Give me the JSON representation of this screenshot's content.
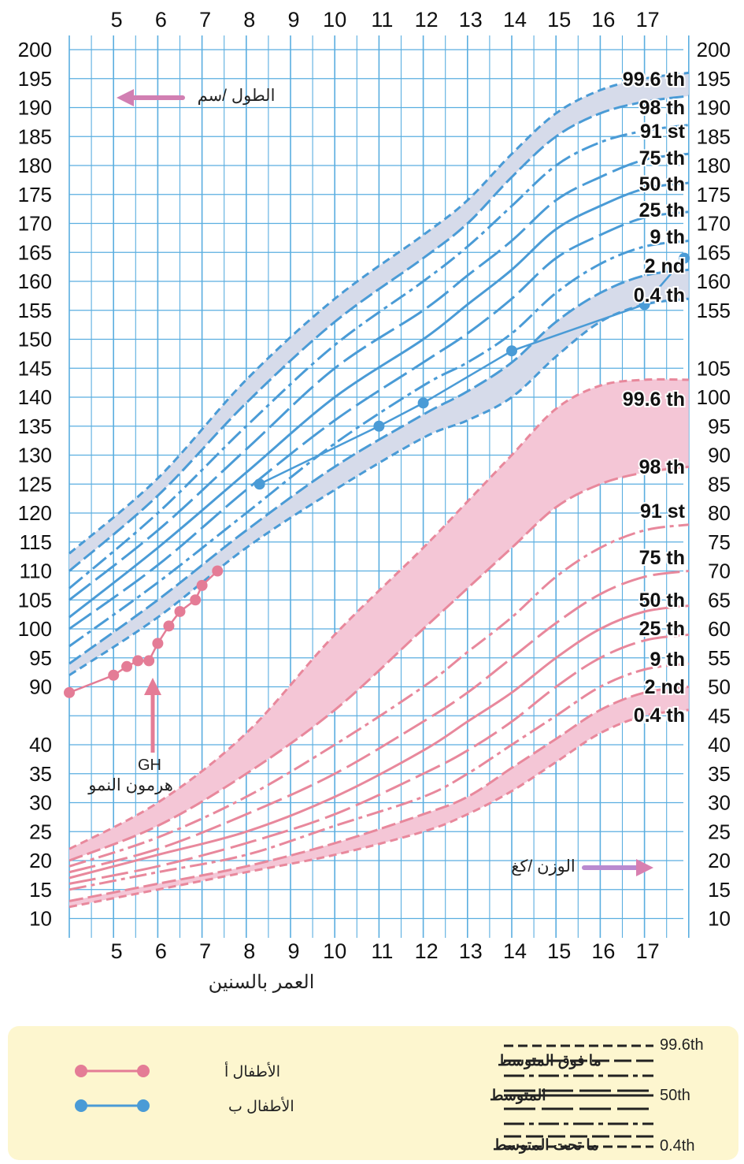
{
  "colors": {
    "grid": "#5aaee0",
    "blue_line": "#4a9bd6",
    "blue_band": "#d6dbea",
    "pink_line": "#e8889c",
    "pink_band": "#f4c6d6",
    "child_a": "#e47c96",
    "child_b": "#4a9bd6",
    "height_arrow": "#d17fb2",
    "weight_arrow": "#b98ad0",
    "legend_bg": "#fdf6cf"
  },
  "chart_data": {
    "type": "line",
    "x_axis": {
      "label": "العمر   بالسنين",
      "top_ticks": [
        "5",
        "6",
        "7",
        "8",
        "9",
        "10",
        "11",
        "12",
        "13",
        "14",
        "15",
        "16",
        "17"
      ],
      "bottom_ticks": [
        "5",
        "6",
        "7",
        "8",
        "9",
        "10",
        "11",
        "12",
        "13",
        "14",
        "15",
        "16",
        "17"
      ]
    },
    "height_axis": {
      "label": "الطول /سم",
      "left_ticks": [
        "200",
        "195",
        "190",
        "185",
        "180",
        "175",
        "170",
        "165",
        "160",
        "155",
        "150",
        "145",
        "140",
        "135",
        "130",
        "125",
        "120",
        "115",
        "110",
        "105",
        "100",
        "95",
        "90"
      ],
      "right_ticks": [
        "200",
        "195",
        "190",
        "185",
        "180",
        "175",
        "170",
        "165",
        "160",
        "155"
      ],
      "range": [
        90,
        200
      ]
    },
    "weight_axis": {
      "label": "الوزن /كغ",
      "left_ticks": [
        "40",
        "35",
        "30",
        "25",
        "20",
        "15",
        "10"
      ],
      "right_ticks": [
        "105",
        "100",
        "95",
        "90",
        "85",
        "80",
        "75",
        "70",
        "65",
        "60",
        "55",
        "50",
        "45",
        "40",
        "35",
        "30",
        "25",
        "20",
        "15",
        "10"
      ],
      "range": [
        10,
        105
      ]
    },
    "height_centiles": [
      "99.6 th",
      "98 th",
      "91 st",
      "75 th",
      "50 th",
      "25 th",
      "9 th",
      "2 nd",
      "0.4 th"
    ],
    "weight_centiles": [
      "99.6 th",
      "98 th",
      "91 st",
      "75 th",
      "50 th",
      "25 th",
      "9 th",
      "2 nd",
      "0.4 th"
    ],
    "height_curves": [
      {
        "name": "99.6 th",
        "x": [
          4,
          6,
          8,
          10,
          12,
          13,
          14,
          15,
          16,
          17,
          18
        ],
        "y": [
          113,
          126,
          143,
          157,
          168,
          174,
          182,
          189,
          193,
          195,
          196
        ]
      },
      {
        "name": "98 th",
        "x": [
          4,
          6,
          8,
          10,
          12,
          13,
          14,
          15,
          16,
          17,
          18
        ],
        "y": [
          110,
          123,
          139,
          153,
          164,
          170,
          178,
          185,
          189,
          191,
          192
        ]
      },
      {
        "name": "91 st",
        "x": [
          4,
          6,
          8,
          10,
          12,
          13,
          14,
          15,
          16,
          17,
          18
        ],
        "y": [
          107,
          120,
          135,
          149,
          160,
          166,
          173,
          180,
          184,
          186,
          187
        ]
      },
      {
        "name": "75 th",
        "x": [
          4,
          6,
          8,
          10,
          12,
          13,
          14,
          15,
          16,
          17,
          18
        ],
        "y": [
          105,
          117,
          131,
          145,
          155,
          161,
          167,
          174,
          178,
          181,
          182
        ]
      },
      {
        "name": "50 th",
        "x": [
          4,
          6,
          8,
          10,
          12,
          13,
          14,
          15,
          16,
          17,
          18
        ],
        "y": [
          102,
          114,
          127,
          140,
          150,
          156,
          162,
          169,
          173,
          176,
          177
        ]
      },
      {
        "name": "25 th",
        "x": [
          4,
          6,
          8,
          10,
          12,
          13,
          14,
          15,
          16,
          17,
          18
        ],
        "y": [
          100,
          111,
          124,
          136,
          146,
          151,
          157,
          164,
          168,
          171,
          172
        ]
      },
      {
        "name": "9 th",
        "x": [
          4,
          6,
          8,
          10,
          12,
          13,
          14,
          15,
          16,
          17,
          18
        ],
        "y": [
          97,
          108,
          120,
          132,
          142,
          146,
          151,
          158,
          163,
          166,
          167
        ]
      },
      {
        "name": "2 nd",
        "x": [
          4,
          6,
          8,
          10,
          12,
          13,
          14,
          15,
          16,
          17,
          18
        ],
        "y": [
          94,
          105,
          117,
          128,
          137,
          141,
          146,
          153,
          158,
          161,
          162
        ]
      },
      {
        "name": "0.4 th",
        "x": [
          4,
          6,
          8,
          10,
          12,
          13,
          14,
          15,
          16,
          17,
          18
        ],
        "y": [
          92,
          102,
          114,
          124,
          133,
          136,
          140,
          147,
          153,
          156,
          157
        ]
      }
    ],
    "weight_curves": [
      {
        "name": "99.6 th",
        "x": [
          4,
          6,
          8,
          10,
          12,
          13,
          14,
          15,
          16,
          17,
          18
        ],
        "y": [
          22,
          30,
          42,
          59,
          74,
          82,
          90,
          98,
          102,
          103,
          103
        ]
      },
      {
        "name": "98 th",
        "x": [
          4,
          6,
          8,
          10,
          12,
          13,
          14,
          15,
          16,
          17,
          18
        ],
        "y": [
          20,
          26,
          35,
          46,
          60,
          67,
          74,
          81,
          85,
          87,
          88
        ]
      },
      {
        "name": "91 st",
        "x": [
          4,
          6,
          8,
          10,
          12,
          13,
          14,
          15,
          16,
          17,
          18
        ],
        "y": [
          19,
          24,
          31,
          40,
          50,
          56,
          62,
          69,
          74,
          77,
          78
        ]
      },
      {
        "name": "75 th",
        "x": [
          4,
          6,
          8,
          10,
          12,
          13,
          14,
          15,
          16,
          17,
          18
        ],
        "y": [
          18,
          22,
          28,
          35,
          44,
          49,
          55,
          61,
          66,
          69,
          70
        ]
      },
      {
        "name": "50 th",
        "x": [
          4,
          6,
          8,
          10,
          12,
          13,
          14,
          15,
          16,
          17,
          18
        ],
        "y": [
          17,
          21,
          25,
          31,
          39,
          44,
          49,
          55,
          60,
          63,
          64
        ]
      },
      {
        "name": "25 th",
        "x": [
          4,
          6,
          8,
          10,
          12,
          13,
          14,
          15,
          16,
          17,
          18
        ],
        "y": [
          16,
          19,
          23,
          28,
          35,
          39,
          44,
          50,
          55,
          58,
          59
        ]
      },
      {
        "name": "9 th",
        "x": [
          4,
          6,
          8,
          10,
          12,
          13,
          14,
          15,
          16,
          17,
          18
        ],
        "y": [
          15,
          18,
          21,
          26,
          31,
          35,
          40,
          45,
          50,
          53,
          54
        ]
      },
      {
        "name": "2 nd",
        "x": [
          4,
          6,
          8,
          10,
          12,
          13,
          14,
          15,
          16,
          17,
          18
        ],
        "y": [
          13,
          16,
          19,
          23,
          28,
          31,
          36,
          41,
          46,
          49,
          50
        ]
      },
      {
        "name": "0.4 th",
        "x": [
          4,
          6,
          8,
          10,
          12,
          13,
          14,
          15,
          16,
          17,
          18
        ],
        "y": [
          12,
          15,
          18,
          21,
          25,
          28,
          32,
          37,
          42,
          45,
          46
        ]
      }
    ],
    "series": [
      {
        "name": "الأطفال أ",
        "axis": "height",
        "x": [
          4.0,
          5.0,
          5.3,
          5.55,
          5.8,
          6.0,
          6.25,
          6.5,
          6.85,
          7.0,
          7.35
        ],
        "y": [
          89,
          92,
          93.5,
          94.5,
          94.5,
          97.5,
          100.5,
          103,
          105,
          107.5,
          110
        ]
      },
      {
        "name": "الأطفال ب",
        "axis": "height",
        "x": [
          8.3,
          11.0,
          12.0,
          14.0,
          17.0,
          17.9
        ],
        "y": [
          125,
          135,
          139,
          148,
          156,
          164
        ]
      }
    ],
    "annotations": {
      "gh": "GH",
      "gh_ar": "هرمون النمو"
    }
  },
  "legend": {
    "child_a": "الأطفال أ",
    "child_b": "الأطفال ب",
    "above_average": "ما فوق المتوسط",
    "average": "المتوسط",
    "below_average": "ما تحت المتوسط",
    "top_centile": "99.6th",
    "mid_centile": "50th",
    "bottom_centile": "0.4th"
  }
}
